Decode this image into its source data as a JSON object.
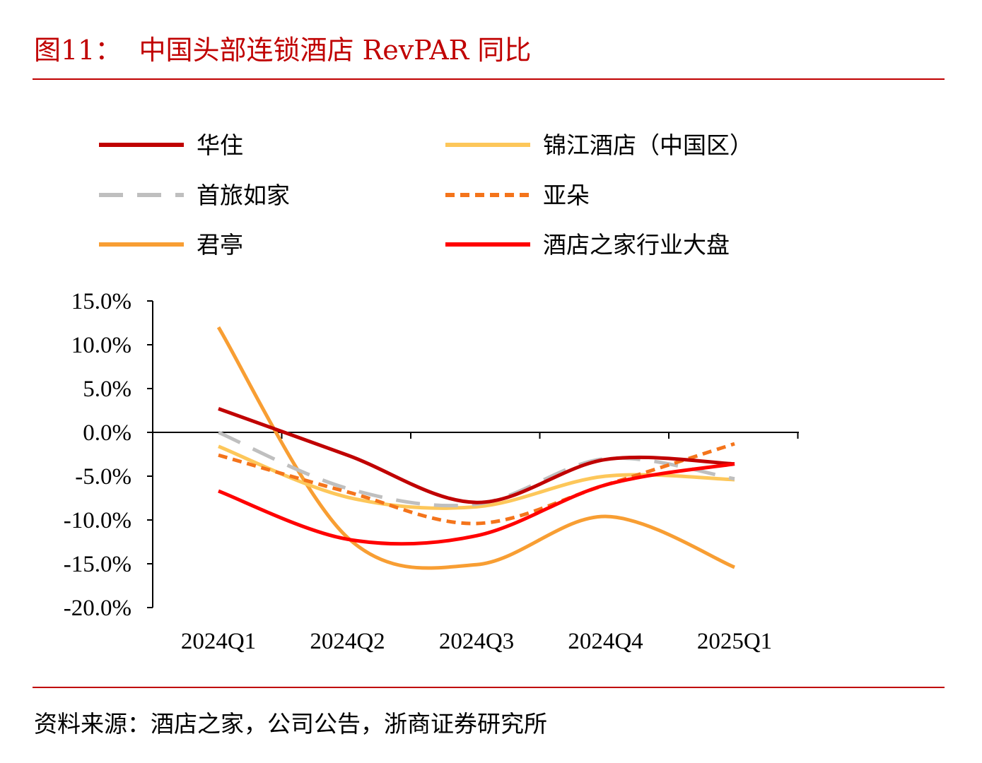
{
  "figure": {
    "title": "图11：  中国头部连锁酒店 RevPAR 同比",
    "source": "资料来源：酒店之家，公司公告，浙商证券研究所"
  },
  "chart_data": {
    "type": "line",
    "title": "",
    "xlabel": "",
    "ylabel": "",
    "categories": [
      "2024Q1",
      "2024Q2",
      "2024Q3",
      "2024Q4",
      "2025Q1"
    ],
    "ylim": [
      -20,
      15
    ],
    "yticks": [
      15,
      10,
      5,
      0,
      -5,
      -10,
      -15,
      -20
    ],
    "ytick_labels": [
      "15.0%",
      "10.0%",
      "5.0%",
      "0.0%",
      "-5.0%",
      "-10.0%",
      "-15.0%",
      "-20.0%"
    ],
    "grid": false,
    "legend_position": "top",
    "series": [
      {
        "name": "华住",
        "values": [
          2.7,
          -2.6,
          -8.0,
          -3.1,
          -3.6
        ],
        "color": "#c00000",
        "dash": "solid"
      },
      {
        "name": "锦江酒店（中国区）",
        "values": [
          -1.6,
          -7.4,
          -8.5,
          -5.0,
          -5.4
        ],
        "color": "#fdc75a",
        "dash": "solid"
      },
      {
        "name": "首旅如家",
        "values": [
          0.0,
          -6.4,
          -8.2,
          -3.0,
          -5.3
        ],
        "color": "#bfbfbf",
        "dash": "long-dash"
      },
      {
        "name": "亚朵",
        "values": [
          -2.6,
          -6.8,
          -10.4,
          -6.0,
          -1.3
        ],
        "color": "#f4741b",
        "dash": "short-dash"
      },
      {
        "name": "君亭",
        "values": [
          12.0,
          -12.0,
          -15.1,
          -9.6,
          -15.4
        ],
        "color": "#f89e33",
        "dash": "solid"
      },
      {
        "name": "酒店之家行业大盘",
        "values": [
          -6.7,
          -12.2,
          -11.8,
          -6.0,
          -3.6
        ],
        "color": "#ff0000",
        "dash": "solid"
      }
    ]
  }
}
